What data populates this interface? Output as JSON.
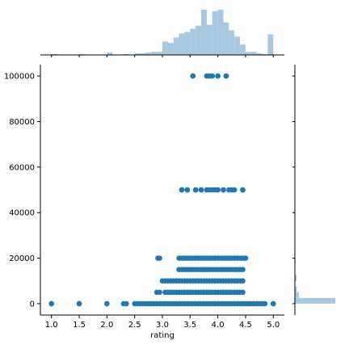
{
  "chart_data": {
    "type": "scatter",
    "kind": "jointplot",
    "xlabel": "rating",
    "ylabel": "",
    "xlim": [
      0.8,
      5.2
    ],
    "ylim": [
      -5000,
      105000
    ],
    "x_ticks": [
      1.0,
      1.5,
      2.0,
      2.5,
      3.0,
      3.5,
      4.0,
      4.5,
      5.0
    ],
    "x_tick_labels": [
      "1.0",
      "1.5",
      "2.0",
      "2.5",
      "3.0",
      "3.5",
      "4.0",
      "4.5",
      "5.0"
    ],
    "y_ticks": [
      0,
      20000,
      40000,
      60000,
      80000,
      100000
    ],
    "y_tick_labels": [
      "0",
      "20000",
      "40000",
      "60000",
      "80000",
      "100000"
    ],
    "grid": false,
    "colors": {
      "points": "#1f77b4",
      "marginal_bars": "#a6c8e0",
      "spines": "#000000"
    },
    "scatter_rows": [
      {
        "y": 0,
        "segments": [
          [
            1.0,
            1.0
          ],
          [
            1.5,
            1.5
          ],
          [
            2.0,
            2.0
          ],
          [
            2.3,
            2.35
          ],
          [
            2.5,
            4.85
          ],
          [
            5.0,
            5.0
          ]
        ]
      },
      {
        "y": 5000,
        "segments": [
          [
            2.9,
            2.95
          ],
          [
            3.05,
            4.45
          ]
        ]
      },
      {
        "y": 10000,
        "segments": [
          [
            3.0,
            3.1
          ],
          [
            3.15,
            4.45
          ]
        ]
      },
      {
        "y": 15000,
        "segments": [
          [
            3.3,
            4.45
          ]
        ]
      },
      {
        "y": 20000,
        "segments": [
          [
            2.92,
            2.95
          ],
          [
            3.3,
            4.5
          ]
        ]
      },
      {
        "y": 50000,
        "segments": [
          [
            3.35,
            3.35
          ],
          [
            3.45,
            3.45
          ],
          [
            3.6,
            3.6
          ],
          [
            3.7,
            3.7
          ],
          [
            3.8,
            3.95
          ],
          [
            4.0,
            4.0
          ],
          [
            4.1,
            4.1
          ],
          [
            4.2,
            4.3
          ],
          [
            4.45,
            4.45
          ]
        ]
      },
      {
        "y": 100000,
        "segments": [
          [
            3.55,
            3.55
          ],
          [
            3.8,
            3.9
          ],
          [
            4.0,
            4.0
          ],
          [
            4.15,
            4.15
          ]
        ]
      }
    ],
    "x_marginal_hist": {
      "bin_width": 0.1,
      "bins": [
        {
          "x": 1.0,
          "count": 1
        },
        {
          "x": 1.5,
          "count": 1
        },
        {
          "x": 2.0,
          "count": 3
        },
        {
          "x": 2.3,
          "count": 1
        },
        {
          "x": 2.5,
          "count": 2
        },
        {
          "x": 2.6,
          "count": 2
        },
        {
          "x": 2.7,
          "count": 3
        },
        {
          "x": 2.8,
          "count": 4
        },
        {
          "x": 2.9,
          "count": 4
        },
        {
          "x": 3.0,
          "count": 17
        },
        {
          "x": 3.1,
          "count": 15
        },
        {
          "x": 3.2,
          "count": 22
        },
        {
          "x": 3.3,
          "count": 27
        },
        {
          "x": 3.4,
          "count": 29
        },
        {
          "x": 3.5,
          "count": 33
        },
        {
          "x": 3.6,
          "count": 37
        },
        {
          "x": 3.7,
          "count": 57
        },
        {
          "x": 3.8,
          "count": 38
        },
        {
          "x": 3.9,
          "count": 55
        },
        {
          "x": 4.0,
          "count": 57
        },
        {
          "x": 4.1,
          "count": 41
        },
        {
          "x": 4.2,
          "count": 31
        },
        {
          "x": 4.3,
          "count": 23
        },
        {
          "x": 4.4,
          "count": 13
        },
        {
          "x": 4.5,
          "count": 4
        },
        {
          "x": 4.6,
          "count": 4
        },
        {
          "x": 4.7,
          "count": 2
        },
        {
          "x": 4.8,
          "count": 1
        },
        {
          "x": 4.9,
          "count": 26
        }
      ]
    },
    "y_marginal_hist": {
      "bin_width": 2500,
      "bins": [
        {
          "y": 0,
          "count": 100
        },
        {
          "y": 2500,
          "count": 10
        },
        {
          "y": 5000,
          "count": 5
        },
        {
          "y": 10000,
          "count": 4
        },
        {
          "y": 17500,
          "count": 2
        },
        {
          "y": 20000,
          "count": 1
        }
      ]
    }
  }
}
